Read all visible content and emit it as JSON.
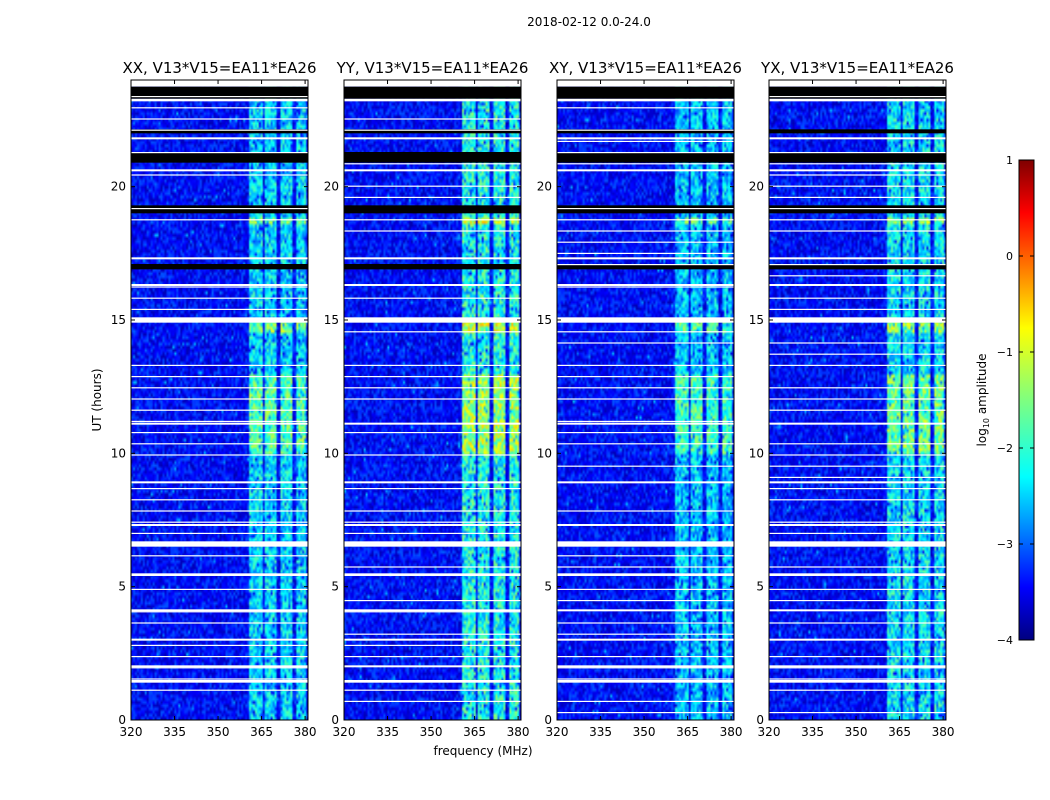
{
  "chart_data": {
    "type": "heatmap",
    "suptitle": "2018-02-12 0.0-24.0",
    "xlabel": "frequency (MHz)",
    "ylabel": "UT (hours)",
    "xlim": [
      320,
      381
    ],
    "ylim": [
      0,
      24
    ],
    "xticks": [
      320,
      335,
      350,
      365,
      380
    ],
    "yticks": [
      0,
      5,
      10,
      15,
      20
    ],
    "panels": [
      {
        "title": "XX, V13*V15=EA11*EA26",
        "rfi_strength": 1.0
      },
      {
        "title": "YY, V13*V15=EA11*EA26",
        "rfi_strength": 1.15
      },
      {
        "title": "XY, V13*V15=EA11*EA26",
        "rfi_strength": 0.95
      },
      {
        "title": "YX, V13*V15=EA11*EA26",
        "rfi_strength": 1.05
      }
    ],
    "rfi_band_mhz": [
      361,
      380
    ],
    "rfi_subbands_mhz": [
      [
        361,
        365.2
      ],
      [
        366.3,
        370.3
      ],
      [
        371.4,
        375.8
      ],
      [
        376.8,
        380
      ]
    ],
    "flagged_white_hours": [
      [
        1.4,
        1.5
      ],
      [
        2.0,
        2.05
      ],
      [
        3.0,
        3.05
      ],
      [
        4.1,
        4.15
      ],
      [
        5.4,
        5.5
      ],
      [
        6.5,
        6.7
      ],
      [
        7.3,
        7.35
      ],
      [
        8.9,
        8.95
      ],
      [
        11.1,
        11.15
      ],
      [
        14.9,
        15.1
      ],
      [
        16.3,
        16.35
      ],
      [
        17.3,
        17.35
      ],
      [
        20.6,
        20.65
      ],
      [
        21.8,
        21.85
      ],
      [
        23.2,
        23.3
      ],
      [
        23.75,
        24.0
      ]
    ],
    "flagged_black_hours": [
      [
        16.9,
        17.1
      ],
      [
        19.0,
        19.3
      ],
      [
        20.9,
        21.3
      ],
      [
        22.0,
        22.15
      ],
      [
        23.3,
        23.75
      ]
    ],
    "colorbar": {
      "label": "log10 amplitude",
      "label_main": "log",
      "label_sub": "10",
      "label_rest": " amplitude",
      "min": -4,
      "max": 1,
      "ticks": [
        "1",
        "0",
        "−1",
        "−2",
        "−3",
        "−4"
      ],
      "colormap": "jet"
    }
  }
}
